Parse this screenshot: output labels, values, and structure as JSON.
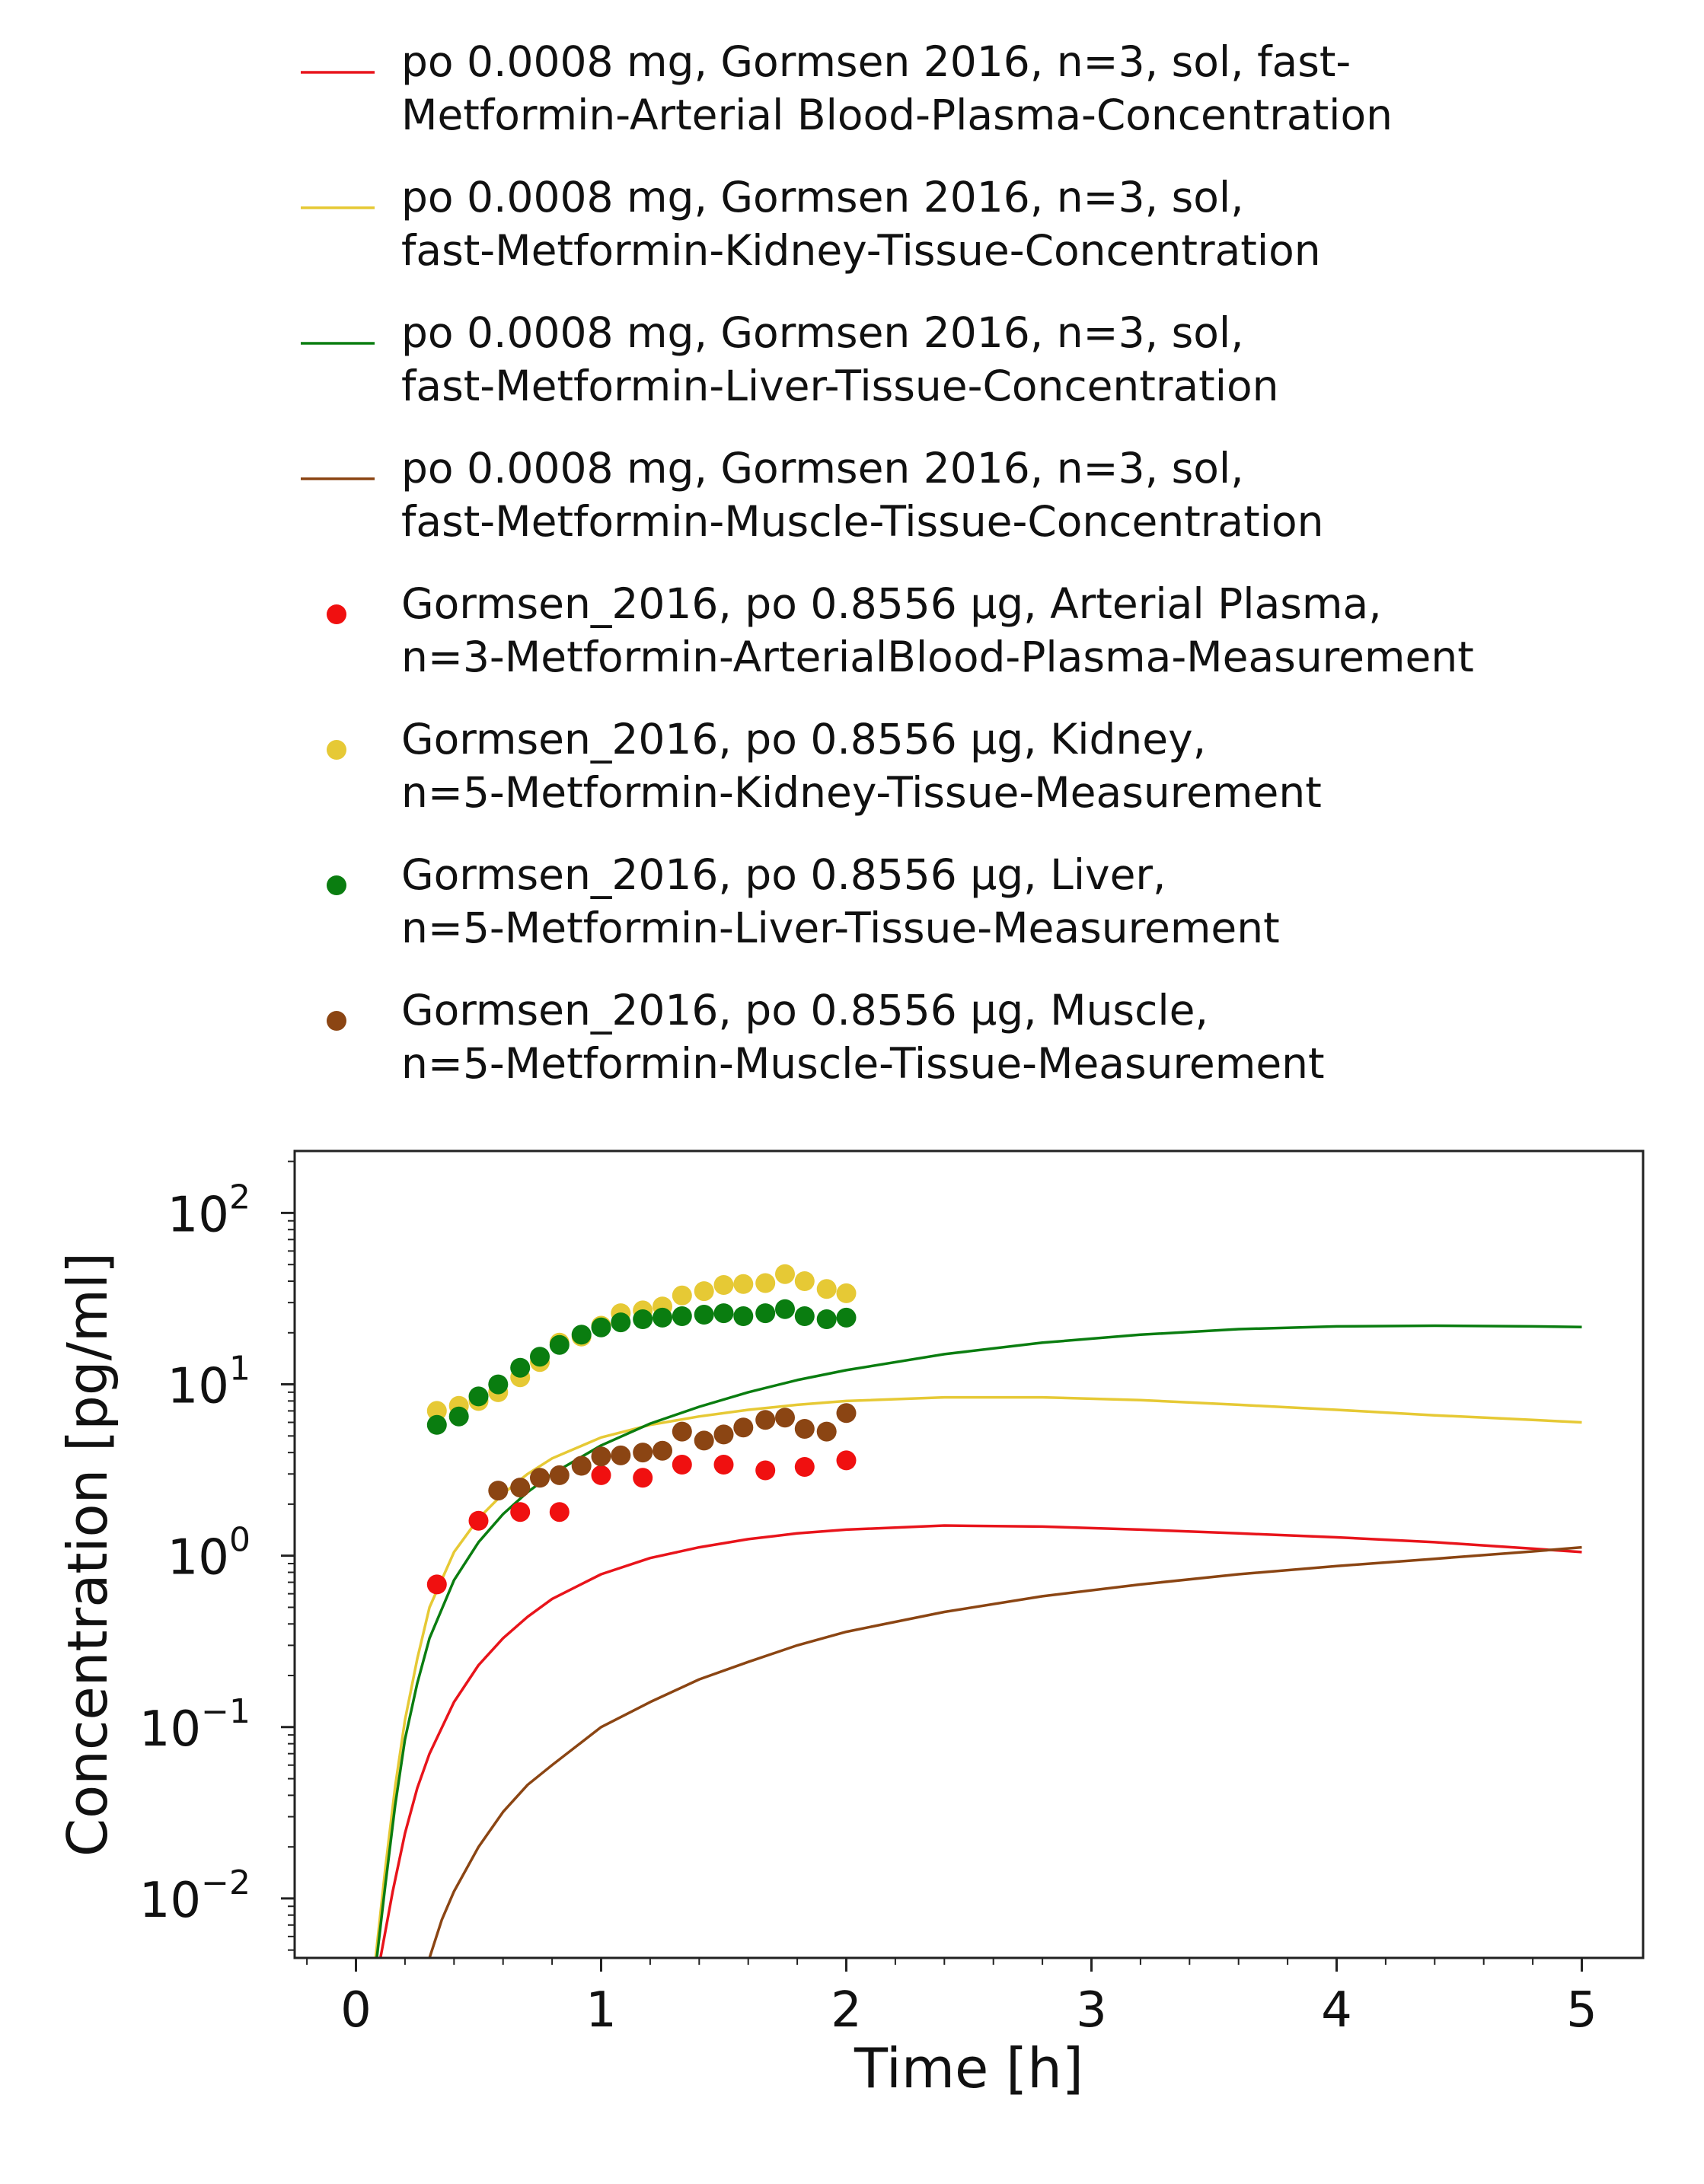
{
  "chart_data": {
    "type": "line",
    "title": "",
    "xlabel": "Time [h]",
    "ylabel": "Concentration [pg/ml]",
    "xlim": [
      -0.25,
      5.25
    ],
    "ylim": [
      0.0045,
      230
    ],
    "yscale": "log",
    "grid": false,
    "legend_position": "top",
    "x_ticks": [
      "0",
      "1",
      "2",
      "3",
      "4",
      "5"
    ],
    "y_ticks": [
      {
        "base": "10",
        "exp": "2"
      },
      {
        "base": "10",
        "exp": "1"
      },
      {
        "base": "10",
        "exp": "0"
      },
      {
        "base": "10",
        "exp": "−1"
      },
      {
        "base": "10",
        "exp": "−2"
      }
    ],
    "series": [
      {
        "name_lines": [
          "po 0.0008 mg, Gormsen 2016, n=3, sol, fast-",
          "Metformin-Arterial Blood-Plasma-Concentration"
        ],
        "kind": "line",
        "color": "#e8141b",
        "x": [
          0.1,
          0.15,
          0.2,
          0.25,
          0.3,
          0.4,
          0.5,
          0.6,
          0.7,
          0.8,
          1.0,
          1.2,
          1.4,
          1.6,
          1.8,
          2.0,
          2.4,
          2.8,
          3.2,
          3.6,
          4.0,
          4.4,
          4.8,
          5.0
        ],
        "y": [
          0.0045,
          0.011,
          0.024,
          0.044,
          0.07,
          0.14,
          0.23,
          0.33,
          0.44,
          0.56,
          0.78,
          0.97,
          1.12,
          1.25,
          1.35,
          1.42,
          1.5,
          1.48,
          1.42,
          1.35,
          1.28,
          1.2,
          1.1,
          1.05
        ]
      },
      {
        "name_lines": [
          "po 0.0008 mg, Gormsen 2016, n=3, sol,",
          "fast-Metformin-Kidney-Tissue-Concentration"
        ],
        "kind": "line",
        "color": "#e6c935",
        "x": [
          0.08,
          0.12,
          0.16,
          0.2,
          0.25,
          0.3,
          0.4,
          0.5,
          0.6,
          0.7,
          0.8,
          1.0,
          1.2,
          1.4,
          1.6,
          1.8,
          2.0,
          2.4,
          2.8,
          3.2,
          3.6,
          4.0,
          4.4,
          4.8,
          5.0
        ],
        "y": [
          0.0045,
          0.015,
          0.045,
          0.11,
          0.25,
          0.5,
          1.05,
          1.65,
          2.3,
          3.0,
          3.7,
          4.9,
          5.8,
          6.5,
          7.1,
          7.6,
          8.0,
          8.4,
          8.4,
          8.1,
          7.6,
          7.1,
          6.6,
          6.2,
          6.0
        ]
      },
      {
        "name_lines": [
          "po 0.0008 mg, Gormsen 2016, n=3, sol,",
          "fast-Metformin-Liver-Tissue-Concentration"
        ],
        "kind": "line",
        "color": "#0a7d10",
        "x": [
          0.085,
          0.12,
          0.16,
          0.2,
          0.25,
          0.3,
          0.4,
          0.5,
          0.6,
          0.7,
          0.8,
          1.0,
          1.2,
          1.4,
          1.6,
          1.8,
          2.0,
          2.4,
          2.8,
          3.2,
          3.6,
          4.0,
          4.4,
          4.8,
          5.0
        ],
        "y": [
          0.0045,
          0.012,
          0.035,
          0.085,
          0.18,
          0.33,
          0.72,
          1.2,
          1.75,
          2.35,
          3.0,
          4.4,
          5.9,
          7.4,
          9.0,
          10.6,
          12.1,
          15.0,
          17.5,
          19.5,
          21.0,
          21.8,
          22.0,
          21.8,
          21.6
        ]
      },
      {
        "name_lines": [
          "po 0.0008 mg, Gormsen 2016, n=3, sol,",
          "fast-Metformin-Muscle-Tissue-Concentration"
        ],
        "kind": "line",
        "color": "#8b4513",
        "x": [
          0.3,
          0.35,
          0.4,
          0.5,
          0.6,
          0.7,
          0.8,
          1.0,
          1.2,
          1.4,
          1.6,
          1.8,
          2.0,
          2.4,
          2.8,
          3.2,
          3.6,
          4.0,
          4.4,
          4.8,
          5.0
        ],
        "y": [
          0.0045,
          0.0075,
          0.011,
          0.02,
          0.032,
          0.046,
          0.06,
          0.1,
          0.14,
          0.19,
          0.24,
          0.3,
          0.36,
          0.47,
          0.58,
          0.68,
          0.78,
          0.87,
          0.96,
          1.06,
          1.12
        ]
      },
      {
        "name_lines": [
          "Gormsen_2016, po 0.8556 µg, Arterial Plasma,",
          "n=3-Metformin-ArterialBlood-Plasma-Measurement"
        ],
        "kind": "scatter",
        "color": "#f01010",
        "x": [
          0.33,
          0.5,
          0.67,
          0.83,
          1.0,
          1.17,
          1.33,
          1.5,
          1.67,
          1.83,
          2.0
        ],
        "y": [
          0.68,
          1.6,
          1.8,
          1.8,
          2.95,
          2.85,
          3.4,
          3.4,
          3.15,
          3.3,
          3.6
        ]
      },
      {
        "name_lines": [
          "Gormsen_2016, po 0.8556 µg, Kidney,",
          "n=5-Metformin-Kidney-Tissue-Measurement"
        ],
        "kind": "scatter",
        "color": "#e6c935",
        "x": [
          0.33,
          0.42,
          0.5,
          0.58,
          0.67,
          0.75,
          0.83,
          0.92,
          1.0,
          1.08,
          1.17,
          1.25,
          1.33,
          1.42,
          1.5,
          1.58,
          1.67,
          1.75,
          1.83,
          1.92,
          2.0
        ],
        "y": [
          7.0,
          7.5,
          8.0,
          9.0,
          11.0,
          13.5,
          17.5,
          19.0,
          22.0,
          26.0,
          27.0,
          28.5,
          33.0,
          35.0,
          38.0,
          38.5,
          39.0,
          44.0,
          40.0,
          36.0,
          34.0
        ]
      },
      {
        "name_lines": [
          "Gormsen_2016, po 0.8556 µg, Liver,",
          "n=5-Metformin-Liver-Tissue-Measurement"
        ],
        "kind": "scatter",
        "color": "#0a7d10",
        "x": [
          0.33,
          0.42,
          0.5,
          0.58,
          0.67,
          0.75,
          0.83,
          0.92,
          1.0,
          1.08,
          1.17,
          1.25,
          1.33,
          1.42,
          1.5,
          1.58,
          1.67,
          1.75,
          1.83,
          1.92,
          2.0
        ],
        "y": [
          5.8,
          6.5,
          8.5,
          10.0,
          12.5,
          14.5,
          17.0,
          19.5,
          21.5,
          23.0,
          24.0,
          24.5,
          25.0,
          25.5,
          26.0,
          25.0,
          26.0,
          27.5,
          25.0,
          24.0,
          24.5
        ]
      },
      {
        "name_lines": [
          "Gormsen_2016, po 0.8556 µg, Muscle,",
          "n=5-Metformin-Muscle-Tissue-Measurement"
        ],
        "kind": "scatter",
        "color": "#8b4513",
        "x": [
          0.58,
          0.67,
          0.75,
          0.83,
          0.92,
          1.0,
          1.08,
          1.17,
          1.25,
          1.33,
          1.42,
          1.5,
          1.58,
          1.67,
          1.75,
          1.83,
          1.92,
          2.0
        ],
        "y": [
          2.4,
          2.5,
          2.85,
          2.95,
          3.35,
          3.8,
          3.85,
          4.0,
          4.1,
          5.3,
          4.7,
          5.1,
          5.6,
          6.2,
          6.4,
          5.5,
          5.3,
          6.8
        ]
      }
    ]
  }
}
